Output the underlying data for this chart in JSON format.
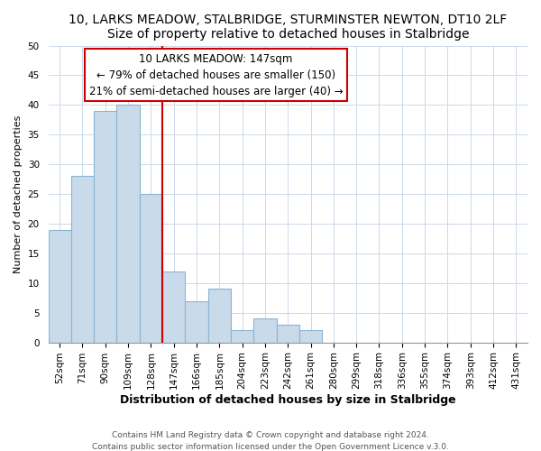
{
  "title": "10, LARKS MEADOW, STALBRIDGE, STURMINSTER NEWTON, DT10 2LF",
  "subtitle": "Size of property relative to detached houses in Stalbridge",
  "xlabel": "Distribution of detached houses by size in Stalbridge",
  "ylabel": "Number of detached properties",
  "bar_labels": [
    "52sqm",
    "71sqm",
    "90sqm",
    "109sqm",
    "128sqm",
    "147sqm",
    "166sqm",
    "185sqm",
    "204sqm",
    "223sqm",
    "242sqm",
    "261sqm",
    "280sqm",
    "299sqm",
    "318sqm",
    "336sqm",
    "355sqm",
    "374sqm",
    "393sqm",
    "412sqm",
    "431sqm"
  ],
  "bar_values": [
    19,
    28,
    39,
    40,
    25,
    12,
    7,
    9,
    2,
    4,
    3,
    2,
    0,
    0,
    0,
    0,
    0,
    0,
    0,
    0,
    0
  ],
  "bar_color": "#c9daea",
  "bar_edgecolor": "#8ab4d4",
  "vline_x": 5,
  "vline_color": "#cc0000",
  "ylim": [
    0,
    50
  ],
  "yticks": [
    0,
    5,
    10,
    15,
    20,
    25,
    30,
    35,
    40,
    45,
    50
  ],
  "annotation_title": "10 LARKS MEADOW: 147sqm",
  "annotation_line1": "← 79% of detached houses are smaller (150)",
  "annotation_line2": "21% of semi-detached houses are larger (40) →",
  "annotation_box_color": "#ffffff",
  "annotation_box_edge": "#cc0000",
  "footnote1": "Contains HM Land Registry data © Crown copyright and database right 2024.",
  "footnote2": "Contains public sector information licensed under the Open Government Licence v.3.0.",
  "title_fontsize": 10,
  "subtitle_fontsize": 9,
  "xlabel_fontsize": 9,
  "ylabel_fontsize": 8,
  "tick_fontsize": 7.5,
  "annotation_fontsize": 8.5,
  "footnote_fontsize": 6.5
}
